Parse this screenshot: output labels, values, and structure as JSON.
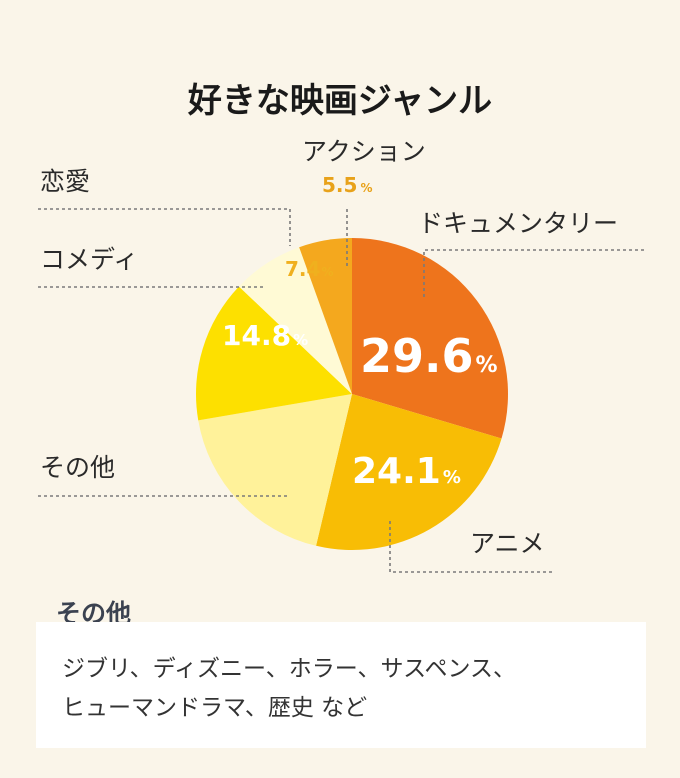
{
  "chart_data": {
    "type": "pie",
    "title": "好きな映画ジャンル",
    "unit": "%",
    "slices": [
      {
        "name": "ドキュメンタリー",
        "value": 29.6,
        "value_label": "29.6",
        "color": "#ee741c",
        "label_color": "#ffffff"
      },
      {
        "name": "アニメ",
        "value": 24.1,
        "value_label": "24.1",
        "color": "#f8bd05",
        "label_color": "#ffffff"
      },
      {
        "name": "その他",
        "value": 18.6,
        "value_label": "",
        "color": "#fff29a",
        "label_color": "#ffffff"
      },
      {
        "name": "コメディ",
        "value": 14.8,
        "value_label": "14.8",
        "color": "#fde000",
        "label_color": "#ffffff"
      },
      {
        "name": "恋愛",
        "value": 7.4,
        "value_label": "7.4",
        "color": "#fffad5",
        "label_color": "#f0b01e"
      },
      {
        "name": "アクション",
        "value": 5.5,
        "value_label": "5.5",
        "color": "#f4a81e",
        "label_color": "#e8a21a"
      }
    ]
  },
  "note": {
    "heading": "その他",
    "lines": [
      "ジブリ、ディズニー、ホラー、サスペンス、",
      "ヒューマンドラマ、歴史 など"
    ]
  }
}
